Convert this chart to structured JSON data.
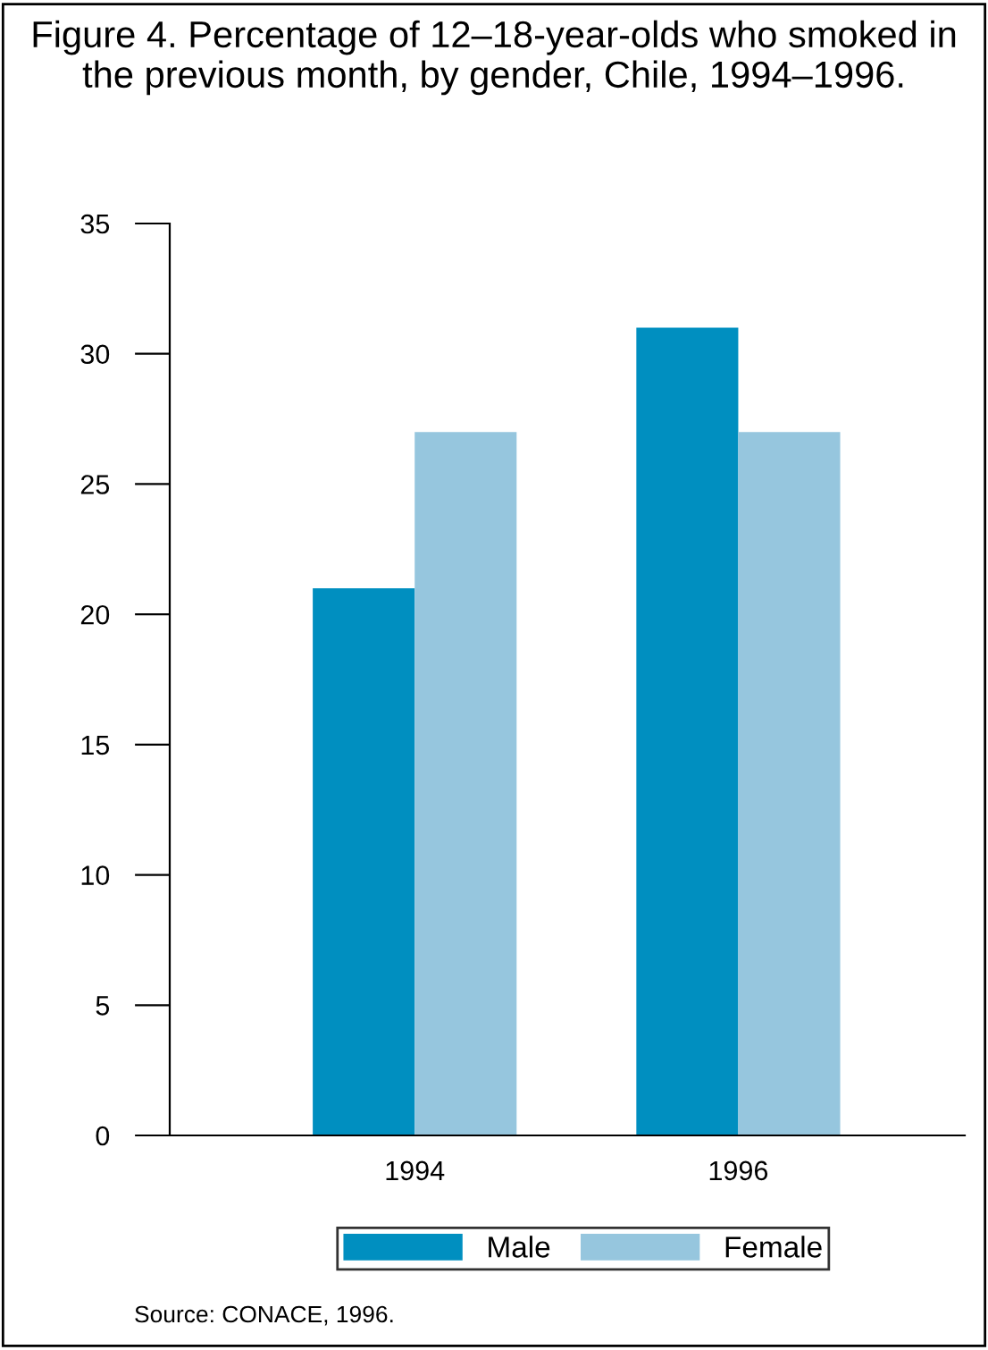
{
  "chart_data": {
    "type": "bar",
    "title": "Figure 4. Percentage of 12–18-year-olds who smoked in the previous month, by gender, Chile, 1994–1996.",
    "categories": [
      "1994",
      "1996"
    ],
    "series": [
      {
        "name": "Male",
        "color": "#008fc0",
        "values": [
          21,
          31
        ]
      },
      {
        "name": "Female",
        "color": "#96c6de",
        "values": [
          27,
          27
        ]
      }
    ],
    "ylim": [
      0,
      35
    ],
    "yticks": [
      0,
      5,
      10,
      15,
      20,
      25,
      30,
      35
    ],
    "grid": false,
    "legend": "bottom",
    "annotations": [
      "Source: CONACE, 1996."
    ]
  }
}
